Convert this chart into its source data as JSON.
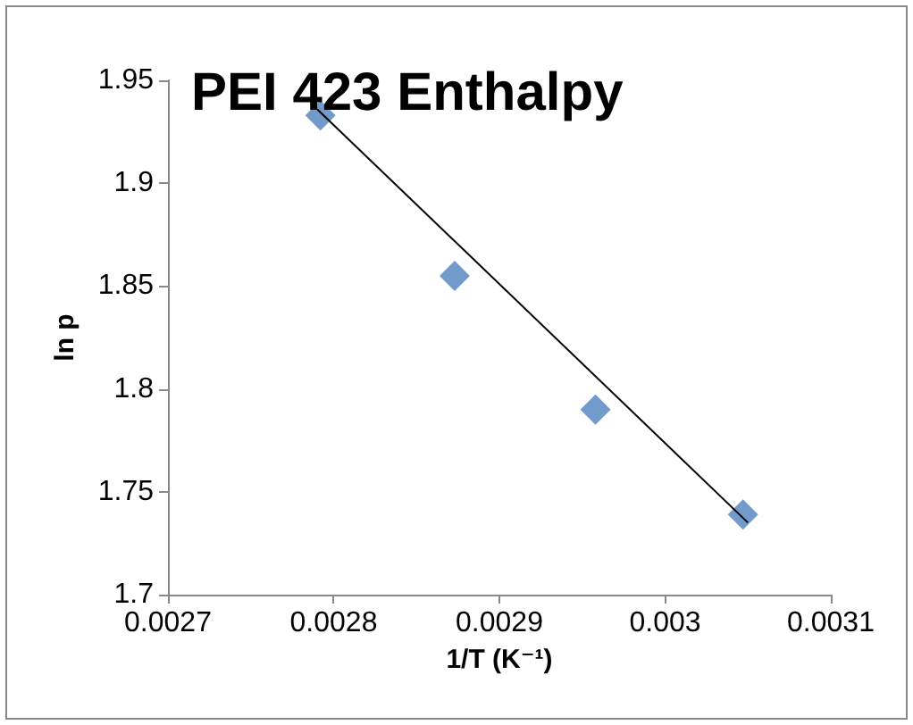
{
  "chart_data": {
    "type": "scatter",
    "title": "PEI 423 Enthalpy",
    "xlabel": "1/T (K⁻¹)",
    "ylabel": "ln p",
    "x": [
      0.002792,
      0.002873,
      0.002958,
      0.003047
    ],
    "series": [
      {
        "color": "#4f81bd",
        "marker": "diamond",
        "values": [
          1.933,
          1.855,
          1.79,
          1.739
        ]
      },
      {
        "type": "line",
        "color": "#000000",
        "marker": "none",
        "x": [
          0.00279,
          0.00305
        ],
        "values": [
          1.936,
          1.735
        ]
      }
    ],
    "xlim": [
      0.0027,
      0.0031
    ],
    "xticks": [
      0.0027,
      0.0028,
      0.0029,
      0.003,
      0.0031
    ],
    "ylim": [
      1.7,
      1.95
    ],
    "yticks": [
      1.7,
      1.75,
      1.8,
      1.85,
      1.9,
      1.95
    ],
    "grid": false
  }
}
